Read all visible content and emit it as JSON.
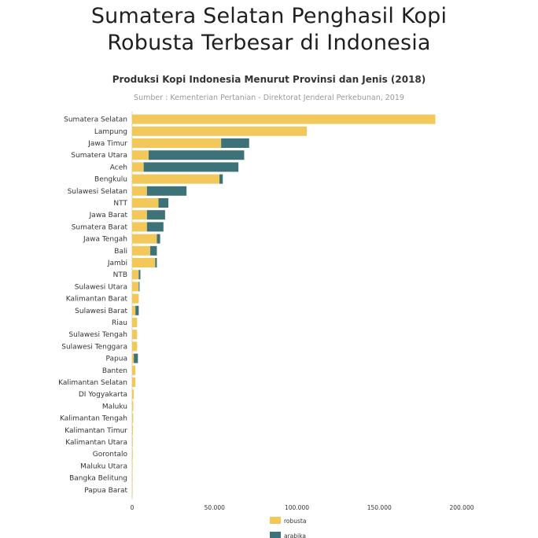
{
  "header": {
    "headline_line1": "Sumatera Selatan Penghasil Kopi",
    "headline_line2": "Robusta Terbesar di Indonesia",
    "subtitle": "Produksi Kopi Indonesia Menurut Provinsi dan Jenis (2018)",
    "source": "Sumber : Kementerian Pertanian - Direktorat Jenderal Perkebunan, 2019"
  },
  "colors": {
    "robusta": "#f2c85b",
    "arabika": "#3d7378",
    "axis": "#cfcfcf"
  },
  "chart_data": {
    "type": "bar",
    "orientation": "horizontal",
    "stacked": true,
    "categories": [
      "Sumatera Selatan",
      "Lampung",
      "Jawa Timur",
      "Sumatera Utara",
      "Aceh",
      "Bengkulu",
      "Sulawesi Selatan",
      "NTT",
      "Jawa Barat",
      "Sumatera Barat",
      "Jawa Tengah",
      "Bali",
      "Jambi",
      "NTB",
      "Sulawesi Utara",
      "Kalimantan Barat",
      "Sulawesi Barat",
      "Riau",
      "Sulawesi Tengah",
      "Sulawesi Tenggara",
      "Papua",
      "Banten",
      "Kalimantan Selatan",
      "DI Yogyakarta",
      "Maluku",
      "Kalimantan Tengah",
      "Kalimantan Timur",
      "Kalimantan Utara",
      "Gorontalo",
      "Maluku Utara",
      "Bangka Belitung",
      "Papua Barat"
    ],
    "series": [
      {
        "name": "robusta",
        "values": [
          184000,
          106000,
          54000,
          10000,
          7000,
          53000,
          9000,
          16000,
          9000,
          9000,
          15000,
          11000,
          14000,
          4000,
          4000,
          4000,
          2000,
          3000,
          3000,
          3000,
          1000,
          2000,
          2000,
          1000,
          700,
          600,
          500,
          400,
          400,
          300,
          200,
          100
        ]
      },
      {
        "name": "arabika",
        "values": [
          0,
          0,
          17000,
          58000,
          57500,
          2000,
          24000,
          6000,
          11000,
          10000,
          2000,
          4000,
          1000,
          1000,
          500,
          0,
          2000,
          0,
          0,
          0,
          2500,
          0,
          0,
          0,
          0,
          0,
          0,
          0,
          0,
          0,
          0,
          0
        ]
      }
    ],
    "xlim": [
      0,
      200000
    ],
    "ticks": [
      0,
      50000,
      100000,
      150000,
      200000
    ],
    "tick_labels": [
      "0",
      "50.000",
      "100.000",
      "150.000",
      "200.000"
    ],
    "grid": false,
    "legend_position": "bottom-left"
  }
}
